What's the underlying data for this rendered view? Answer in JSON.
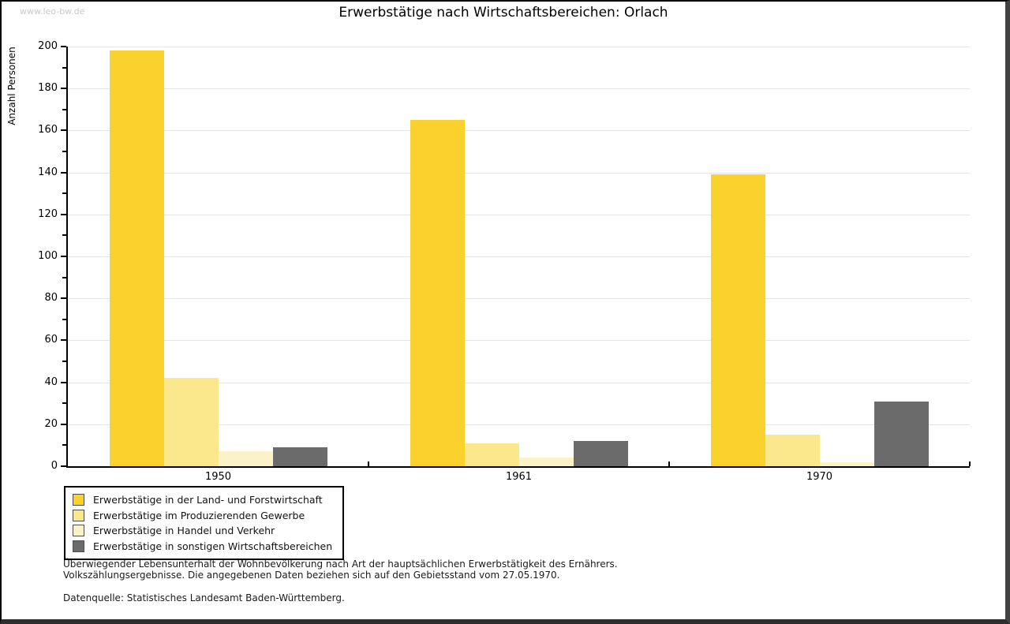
{
  "watermark": "www.leo-bw.de",
  "title": "Erwerbstätige nach Wirtschaftsbereichen: Orlach",
  "chart_data": {
    "type": "bar",
    "title": "Erwerbstätige nach Wirtschaftsbereichen: Orlach",
    "ylabel": "Anzahl Personen",
    "xlabel": "",
    "categories": [
      "1950",
      "1961",
      "1970"
    ],
    "series": [
      {
        "name": "Erwerbstätige in der Land- und Forstwirtschaft",
        "color": "#FBD22D",
        "values": [
          198,
          165,
          139
        ]
      },
      {
        "name": "Erwerbstätige im Produzierenden Gewerbe",
        "color": "#FBE88D",
        "values": [
          42,
          11,
          15
        ]
      },
      {
        "name": "Erwerbstätige in Handel und Verkehr",
        "color": "#FBF2C7",
        "values": [
          7,
          4,
          2
        ]
      },
      {
        "name": "Erwerbstätige in sonstigen Wirtschaftsbereichen",
        "color": "#6B6B6B",
        "values": [
          9,
          12,
          31
        ]
      }
    ],
    "ylim": [
      0,
      200
    ],
    "ytick_step": 20,
    "yminor_step": 10,
    "grid": true,
    "grid_color": "#E3E3E3",
    "legend_position": "bottom-left"
  },
  "footnotes": [
    "Überwiegender Lebensunterhalt der Wohnbevölkerung nach Art der hauptsächlichen Erwerbstätigkeit des Ernährers.",
    "Volkszählungsergebnisse. Die angegebenen Daten beziehen sich auf den Gebietsstand vom 27.05.1970."
  ],
  "source": "Datenquelle: Statistisches Landesamt Baden-Württemberg."
}
